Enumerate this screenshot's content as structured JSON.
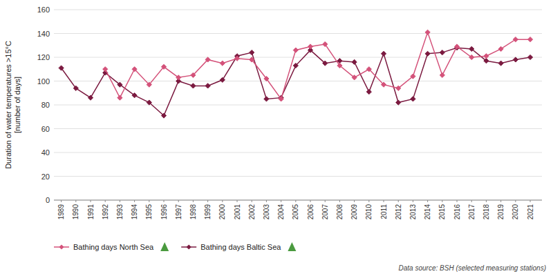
{
  "chart_data": {
    "type": "line",
    "ylabel": "Duration of water temperatures >15°C\n[number of days]",
    "x": [
      1989,
      1990,
      1991,
      1992,
      1993,
      1994,
      1995,
      1996,
      1997,
      1998,
      1999,
      2000,
      2001,
      2002,
      2003,
      2004,
      2005,
      2006,
      2007,
      2008,
      2009,
      2010,
      2011,
      2012,
      2013,
      2014,
      2015,
      2016,
      2017,
      2018,
      2019,
      2020,
      2021
    ],
    "series": [
      {
        "name": "Bathing days Baltic Sea",
        "color": "#7b1a40",
        "marker": "diamond",
        "values": [
          111,
          94,
          86,
          107,
          97,
          88,
          82,
          71,
          100,
          96,
          96,
          101,
          121,
          124,
          85,
          86,
          113,
          126,
          115,
          117,
          116,
          91,
          123,
          82,
          85,
          123,
          124,
          128,
          127,
          117,
          115,
          118,
          120
        ]
      },
      {
        "name": "Bathing days North Sea",
        "color": "#d4527a",
        "marker": "diamond",
        "values": [
          null,
          null,
          null,
          110,
          86,
          110,
          97,
          112,
          103,
          105,
          118,
          115,
          119,
          118,
          102,
          85,
          126,
          129,
          131,
          113,
          103,
          110,
          97,
          94,
          104,
          141,
          105,
          129,
          120,
          121,
          127,
          135,
          135
        ]
      }
    ],
    "xlim": [
      1988.5,
      2021.8
    ],
    "xticks": [
      1989,
      1990,
      1991,
      1992,
      1993,
      1994,
      1995,
      1996,
      1997,
      1998,
      1999,
      2000,
      2001,
      2002,
      2003,
      2004,
      2005,
      2006,
      2007,
      2008,
      2009,
      2010,
      2011,
      2012,
      2013,
      2014,
      2015,
      2016,
      2017,
      2018,
      2019,
      2020,
      2021
    ],
    "ylim": [
      0,
      160
    ],
    "yticks": [
      0,
      20,
      40,
      60,
      80,
      100,
      120,
      140,
      160
    ],
    "grid": true,
    "legend": "lower left",
    "annotations": [
      "Data source: BSH (selected measuring stations)"
    ]
  }
}
